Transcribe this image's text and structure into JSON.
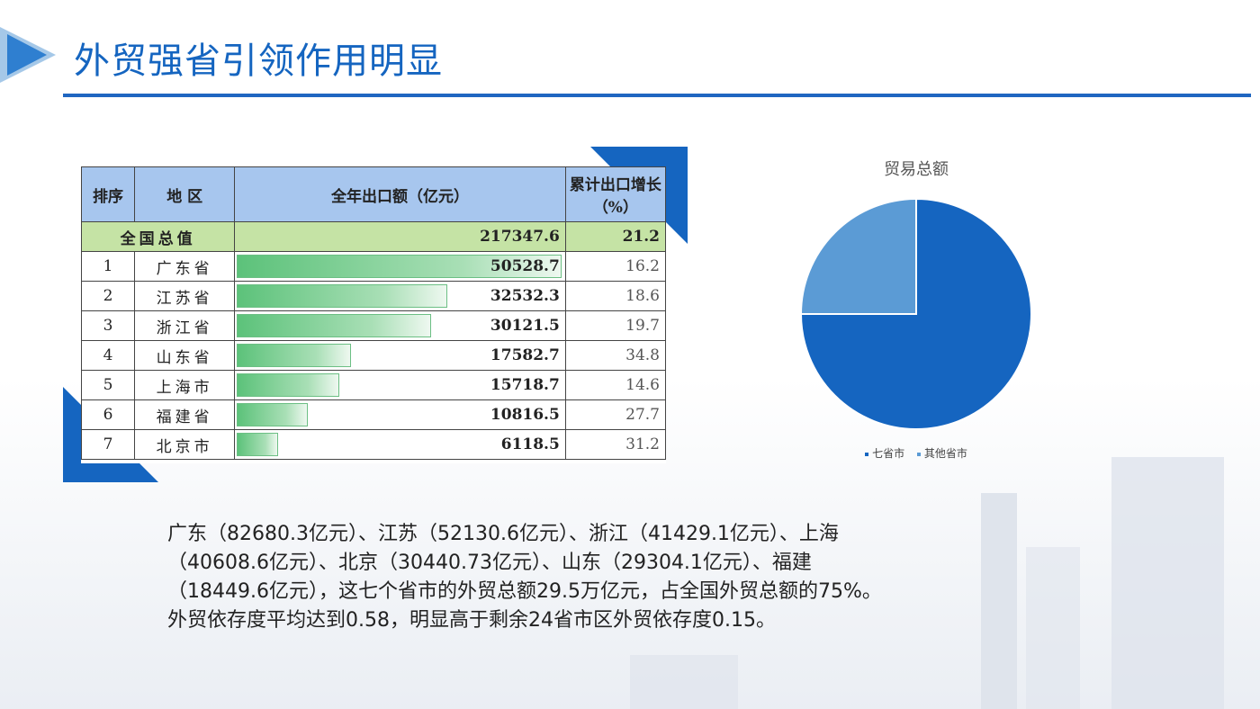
{
  "title": "外贸强省引领作用明显",
  "table": {
    "headers": [
      "排序",
      "地 区",
      "全年出口额（亿元）",
      "累计出口增长（%）"
    ],
    "total": {
      "label": "全国总值",
      "value": "217347.6",
      "growth": "21.2"
    },
    "rows": [
      {
        "rank": "1",
        "region": "广东省",
        "value": "50528.7",
        "growth": "16.2",
        "value_num": 50528.7
      },
      {
        "rank": "2",
        "region": "江苏省",
        "value": "32532.3",
        "growth": "18.6",
        "value_num": 32532.3
      },
      {
        "rank": "3",
        "region": "浙江省",
        "value": "30121.5",
        "growth": "19.7",
        "value_num": 30121.5
      },
      {
        "rank": "4",
        "region": "山东省",
        "value": "17582.7",
        "growth": "34.8",
        "value_num": 17582.7
      },
      {
        "rank": "5",
        "region": "上海市",
        "value": "15718.7",
        "growth": "14.6",
        "value_num": 15718.7
      },
      {
        "rank": "6",
        "region": "福建省",
        "value": "10816.5",
        "growth": "27.7",
        "value_num": 10816.5
      },
      {
        "rank": "7",
        "region": "北京市",
        "value": "6118.5",
        "growth": "31.2",
        "value_num": 6118.5
      }
    ]
  },
  "chart_data": {
    "type": "pie",
    "title": "贸易总额",
    "categories": [
      "七省市",
      "其他省市"
    ],
    "values": [
      75,
      25
    ],
    "colors": [
      "#1565c0",
      "#5b9bd5"
    ],
    "legend": "bottom"
  },
  "paragraph": [
    "广东（82680.3亿元）、江苏（52130.6亿元）、浙江（41429.1亿元）、上海",
    "（40608.6亿元）、北京（30440.73亿元）、山东（29304.1亿元）、福建",
    "（18449.6亿元），这七个省市的外贸总额29.5万亿元，占全国外贸总额的75%。",
    "外贸依存度平均达到0.58，明显高于剩余24省市区外贸依存度0.15。"
  ],
  "colors": {
    "accent": "#1565c0",
    "header_bg": "#a7c6ee",
    "total_bg": "#c5e3a5"
  }
}
